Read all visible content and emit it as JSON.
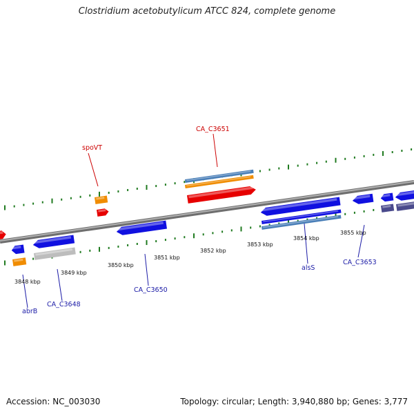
{
  "title": "Clostridium acetobutylicum ATCC 824, complete genome",
  "footer": {
    "accession": "Accession: NC_003030",
    "topology": "Topology: circular; Length: 3,940,880 bp; Genes: 3,777"
  },
  "scale_labels": [
    "3848 kbp",
    "3849 kbp",
    "3850 kbp",
    "3851 kbp",
    "3852 kbp",
    "3853 kbp",
    "3854 kbp",
    "3855 kbp"
  ],
  "gene_labels": [
    {
      "name": "spoVT",
      "strand": "forward",
      "color": "#cc0000"
    },
    {
      "name": "CA_C3651",
      "strand": "forward",
      "color": "#cc0000"
    },
    {
      "name": "abrB",
      "strand": "reverse",
      "color": "#1a1aa6"
    },
    {
      "name": "CA_C3648",
      "strand": "reverse",
      "color": "#1a1aa6"
    },
    {
      "name": "CA_C3650",
      "strand": "reverse",
      "color": "#1a1aa6"
    },
    {
      "name": "alsS",
      "strand": "reverse",
      "color": "#1a1aa6"
    },
    {
      "name": "CA_C3653",
      "strand": "reverse",
      "color": "#1a1aa6"
    }
  ],
  "colors": {
    "backbone": "#8a8a8a",
    "tick": "#1f7a1f",
    "cds_forward": "#e60000",
    "cds_reverse": "#1010e0",
    "gene_orange": "#f08c00",
    "gene_steel": "#4a7fb8",
    "gene_gray": "#bdbdbd",
    "gene_slate": "#4a4a8c"
  }
}
